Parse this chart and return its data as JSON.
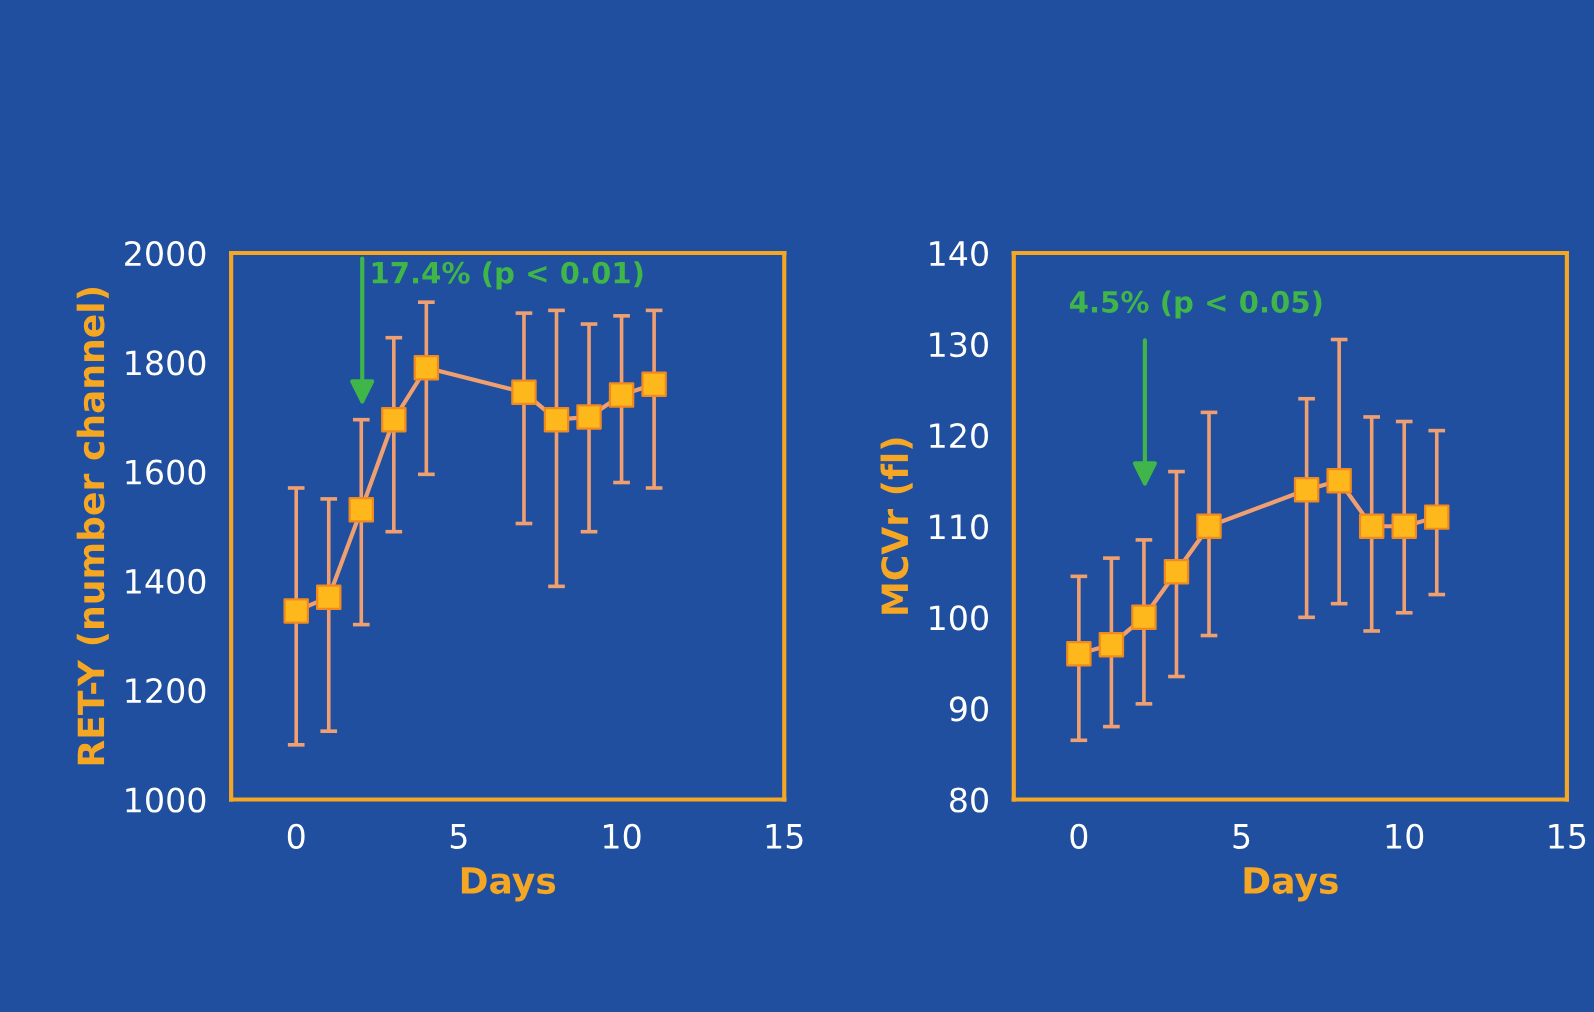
{
  "chart_data": [
    {
      "type": "line",
      "xlabel": "Days",
      "ylabel": "RET-Y (number channel)",
      "x": [
        0,
        1,
        2,
        3,
        4,
        7,
        8,
        9,
        10,
        11
      ],
      "xlim": [
        -2,
        15
      ],
      "xticks": [
        0,
        5,
        10,
        15
      ],
      "ylim": [
        1000,
        2000
      ],
      "yticks": [
        1000,
        1200,
        1400,
        1600,
        1800,
        2000
      ],
      "marker": "square",
      "grid": false,
      "legend": false,
      "series": [
        {
          "color": "#f0a070",
          "values": [
            1345,
            1370,
            1530,
            1695,
            1790,
            1745,
            1695,
            1700,
            1740,
            1760
          ],
          "errors": [
            [
              1100,
              1570
            ],
            [
              1125,
              1550
            ],
            [
              1320,
              1695
            ],
            [
              1490,
              1845
            ],
            [
              1595,
              1910
            ],
            [
              1505,
              1890
            ],
            [
              1390,
              1895
            ],
            [
              1490,
              1870
            ],
            [
              1580,
              1885
            ],
            [
              1570,
              1895
            ]
          ]
        }
      ],
      "annotations": [
        "17.4% (p < 0.01)"
      ]
    },
    {
      "type": "line",
      "xlabel": "Days",
      "ylabel": "MCVr (fl)",
      "x": [
        0,
        1,
        2,
        3,
        4,
        7,
        8,
        9,
        10,
        11
      ],
      "xlim": [
        -2,
        15
      ],
      "xticks": [
        0,
        5,
        10,
        15
      ],
      "ylim": [
        80,
        140
      ],
      "yticks": [
        80,
        90,
        100,
        110,
        120,
        130,
        140
      ],
      "marker": "square",
      "grid": false,
      "legend": false,
      "series": [
        {
          "color": "#f0a070",
          "values": [
            96,
            97,
            100,
            105,
            110,
            114,
            115,
            110,
            110,
            111
          ],
          "errors": [
            [
              86.5,
              104.5
            ],
            [
              88,
              106.5
            ],
            [
              90.5,
              108.5
            ],
            [
              93.5,
              116
            ],
            [
              98,
              122.5
            ],
            [
              100,
              124
            ],
            [
              101.5,
              130.5
            ],
            [
              98.5,
              122
            ],
            [
              100.5,
              121.5
            ],
            [
              102.5,
              120.5
            ]
          ]
        }
      ],
      "annotations": [
        "4.5% (p < 0.05)"
      ]
    }
  ]
}
